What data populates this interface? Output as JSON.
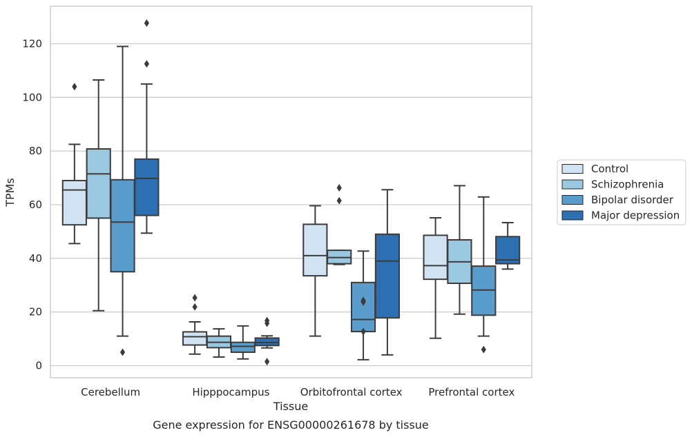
{
  "chart_data": {
    "type": "box",
    "title": "",
    "caption": "Gene expression for ENSG00000261678 by tissue",
    "xlabel": "Tissue",
    "ylabel": "TPMs",
    "ylim": [
      -4.5,
      134
    ],
    "yticks": [
      0,
      20,
      40,
      60,
      80,
      100,
      120
    ],
    "grid": "horizontal",
    "legend_position": "right",
    "categories": [
      "Cerebellum",
      "Hipppocampus",
      "Orbitofrontal cortex",
      "Prefrontal cortex"
    ],
    "series": [
      {
        "name": "Control",
        "color": "#d1e2f2",
        "boxes": [
          {
            "whislo": 45.5,
            "q1": 52.5,
            "med": 65.5,
            "q3": 69,
            "whishi": 82.5,
            "fliers": [
              104
            ]
          },
          {
            "whislo": 4.3,
            "q1": 7.7,
            "med": 10.8,
            "q3": 12.6,
            "whishi": 16.3,
            "fliers": [
              21.9,
              25.3
            ]
          },
          {
            "whislo": 11,
            "q1": 33.5,
            "med": 41,
            "q3": 52.7,
            "whishi": 59.6,
            "fliers": []
          },
          {
            "whislo": 10.2,
            "q1": 32.2,
            "med": 37.3,
            "q3": 48.6,
            "whishi": 55.1,
            "fliers": []
          }
        ]
      },
      {
        "name": "Schizophrenia",
        "color": "#9ac8e0",
        "boxes": [
          {
            "whislo": 20.5,
            "q1": 55,
            "med": 71.5,
            "q3": 80.8,
            "whishi": 106.5,
            "fliers": []
          },
          {
            "whislo": 3.2,
            "q1": 6.7,
            "med": 8.7,
            "q3": 11,
            "whishi": 13.7,
            "fliers": []
          },
          {
            "whislo": 37.7,
            "q1": 38,
            "med": 40.3,
            "q3": 43,
            "whishi": 43,
            "fliers": [
              61.5,
              66.3
            ]
          },
          {
            "whislo": 19.2,
            "q1": 30.7,
            "med": 38.7,
            "q3": 46.9,
            "whishi": 67.1,
            "fliers": []
          }
        ]
      },
      {
        "name": "Bipolar disorder",
        "color": "#5a9dcc",
        "boxes": [
          {
            "whislo": 11,
            "q1": 35,
            "med": 53.5,
            "q3": 69.3,
            "whishi": 119,
            "fliers": [
              5
            ]
          },
          {
            "whislo": 2.5,
            "q1": 5,
            "med": 7.2,
            "q3": 8.7,
            "whishi": 14.8,
            "fliers": []
          },
          {
            "whislo": 2.2,
            "q1": 12.7,
            "med": 17.2,
            "q3": 31,
            "whishi": 42.7,
            "fliers": [
              12.7,
              23.7,
              24.3
            ]
          },
          {
            "whislo": 11,
            "q1": 18.8,
            "med": 28.2,
            "q3": 37.1,
            "whishi": 62.9,
            "fliers": [
              6
            ]
          }
        ]
      },
      {
        "name": "Major depression",
        "color": "#2c6fb3",
        "boxes": [
          {
            "whislo": 49.4,
            "q1": 56,
            "med": 69.8,
            "q3": 77,
            "whishi": 105,
            "fliers": [
              112.5,
              127.7
            ]
          },
          {
            "whislo": 6.6,
            "q1": 7.5,
            "med": 8.6,
            "q3": 10.3,
            "whishi": 11.1,
            "fliers": [
              1.5,
              15.8,
              16.8
            ]
          },
          {
            "whislo": 4,
            "q1": 17.8,
            "med": 39,
            "q3": 49,
            "whishi": 65.6,
            "fliers": []
          },
          {
            "whislo": 36,
            "q1": 38,
            "med": 39.4,
            "q3": 48.1,
            "whishi": 53.3,
            "fliers": []
          }
        ]
      }
    ]
  }
}
